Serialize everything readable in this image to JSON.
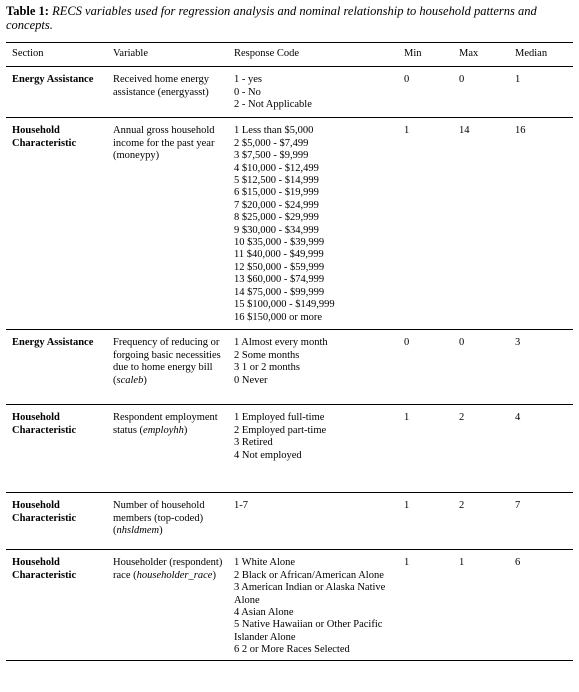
{
  "caption": {
    "label": "Table 1:",
    "text": "RECS variables used for regression analysis and nominal relationship to household patterns and concepts."
  },
  "headers": [
    "Section",
    "Variable",
    "Response Code",
    "Min",
    "Max",
    "Median"
  ],
  "rows": [
    {
      "section": "Energy Assistance",
      "variable_text": "Received home energy assistance (",
      "variable_code": "energyasst",
      "variable_close": ")",
      "codes": [
        "1 - yes",
        "0 - No",
        "2 - Not Applicable"
      ],
      "min": "0",
      "max": "0",
      "median": "1"
    },
    {
      "section": "Household Characteristic",
      "variable_text": "Annual gross household income for the past year (",
      "variable_code": "moneypy",
      "variable_close": ")",
      "codes": [
        "1 Less than $5,000",
        "2 $5,000 - $7,499",
        "3 $7,500 - $9,999",
        "4 $10,000 - $12,499",
        "5 $12,500 - $14,999",
        "6 $15,000 - $19,999",
        "7 $20,000 - $24,999",
        "8 $25,000 - $29,999",
        "9 $30,000 - $34,999",
        "10 $35,000 - $39,999",
        "11 $40,000 - $49,999",
        "12 $50,000 - $59,999",
        "13 $60,000 - $74,999",
        "14 $75,000 - $99,999",
        "15 $100,000 - $149,999",
        "16 $150,000 or more"
      ],
      "min": "1",
      "max": "14",
      "median": "16"
    },
    {
      "section": "Energy Assistance",
      "variable_text": "Frequency of reducing or forgoing basic necessities due to home energy bill (",
      "variable_code": "scaleb",
      "variable_close": ")",
      "codes": [
        "1 Almost every month",
        "2 Some months",
        "3 1 or 2 months",
        "0 Never"
      ],
      "min": "0",
      "max": "0",
      "median": "3"
    },
    {
      "section": "Household Characteristic",
      "variable_text": "Respondent employment status (",
      "variable_code": "employhh",
      "variable_close": ")",
      "codes": [
        "1 Employed full-time",
        "2 Employed part-time",
        "3 Retired",
        "4 Not employed"
      ],
      "min": "1",
      "max": "2",
      "median": "4"
    },
    {
      "section": "Household Characteristic",
      "variable_text": "Number of household members (top-coded) (",
      "variable_code": "nhsldmem",
      "variable_close": ")",
      "codes": [
        "1-7"
      ],
      "min": "1",
      "max": "2",
      "median": "7"
    },
    {
      "section": "Household Characteristic",
      "variable_text": "Householder (respondent) race (",
      "variable_code": "householder_race",
      "variable_close": ")",
      "codes": [
        "1 White Alone",
        "2 Black or African/American Alone",
        "3 American Indian or Alaska Native Alone",
        "4 Asian Alone",
        "5 Native Hawaiian or Other Pacific Islander Alone",
        "6 2 or More Races Selected"
      ],
      "min": "1",
      "max": "1",
      "median": "6"
    }
  ]
}
